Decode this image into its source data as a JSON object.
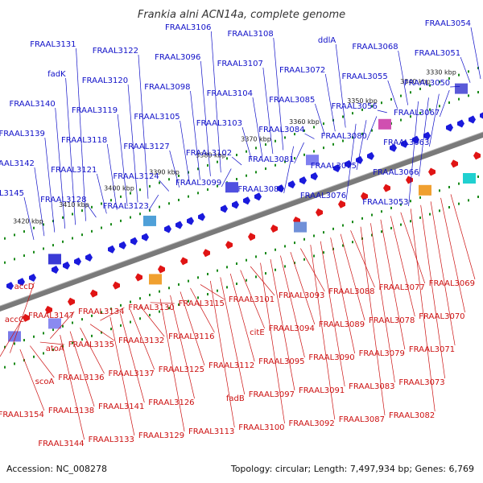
{
  "title": "Frankia alni ACN14a, complete genome",
  "footer": {
    "accession": "Accession: NC_008278",
    "topology": "Topology: circular; Length: 7,497,934 bp; Genes: 6,769"
  },
  "colors": {
    "forward_label": "#1010c8",
    "reverse_label": "#cc1010",
    "forward_gene": "#1a1adc",
    "reverse_gene": "#e01414",
    "tick": "#1a8a1a",
    "backbone": "#7a7a7a"
  },
  "kbp_marks": [
    "3330 kbp",
    "3340 kbp",
    "3350 kbp",
    "3360 kbp",
    "3370 kbp",
    "3380 kbp",
    "3390 kbp",
    "3400 kbp",
    "3410 kbp",
    "3420 kbp"
  ],
  "forward_labels": [
    "FRAAL3054",
    "FRAAL3051",
    "FRAAL3050",
    "FRAAL3067",
    "FRAAL3063",
    "FRAAL3066",
    "FRAAL3053",
    "FRAAL3068",
    "FRAAL3055",
    "FRAAL3056",
    "FRAAL3080",
    "FRAAL3075",
    "FRAAL3076",
    "ddlA",
    "FRAAL3072",
    "FRAAL3085",
    "FRAAL3084",
    "FRAAL3081",
    "FRAAL3086",
    "FRAAL3108",
    "FRAAL3107",
    "FRAAL3104",
    "FRAAL3103",
    "FRAAL3102",
    "FRAAL3099",
    "FRAAL3106",
    "FRAAL3096",
    "FRAAL3098",
    "FRAAL3105",
    "FRAAL3127",
    "FRAAL3124",
    "FRAAL3123",
    "FRAAL3122",
    "FRAAL3120",
    "FRAAL3119",
    "FRAAL3118",
    "FRAAL3121",
    "FRAAL3128",
    "FRAAL3131",
    "fadK",
    "FRAAL3140",
    "FRAAL3139",
    "FRAAL3142",
    "FRAAL3145"
  ],
  "reverse_labels": [
    "FRAAL3069",
    "FRAAL3070",
    "FRAAL3071",
    "FRAAL3073",
    "FRAAL3082",
    "FRAAL3077",
    "FRAAL3078",
    "FRAAL3079",
    "FRAAL3083",
    "FRAAL3087",
    "FRAAL3088",
    "FRAAL3089",
    "FRAAL3090",
    "FRAAL3091",
    "FRAAL3092",
    "FRAAL3093",
    "FRAAL3094",
    "FRAAL3095",
    "FRAAL3097",
    "FRAAL3100",
    "FRAAL3101",
    "citE",
    "FRAAL3112",
    "fadB",
    "FRAAL3113",
    "FRAAL3115",
    "FRAAL3116",
    "FRAAL3125",
    "FRAAL3126",
    "FRAAL3129",
    "FRAAL3130",
    "FRAAL3132",
    "FRAAL3137",
    "FRAAL3141",
    "FRAAL3133",
    "FRAAL3134",
    "FRAAL3135",
    "FRAAL3136",
    "FRAAL3138",
    "FRAAL3144",
    "FRAAL3147",
    "atoA",
    "scoA",
    "FRAAL3154",
    "accD",
    "accC"
  ]
}
